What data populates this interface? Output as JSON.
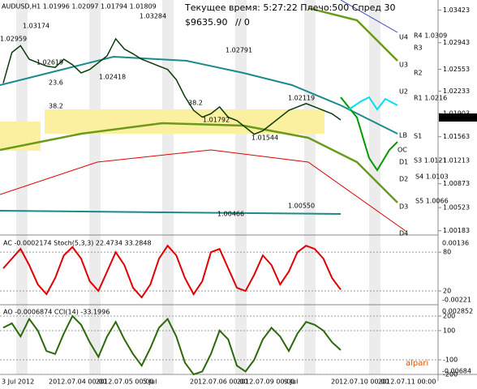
{
  "header": {
    "symbol": "AUDUSD,H1  1.01996 1.02097 1.01794 1.01809",
    "status": "Текущее время: 5:27:22 Плечо:500 Спред 30",
    "balance": "$9635.90",
    "counter": "// 0"
  },
  "chart_data": [
    {
      "type": "line",
      "title": "AUDUSD,H1",
      "color": "#0a3a0a",
      "values": [
        1.0235,
        1.028,
        1.029,
        1.027,
        1.0265,
        1.026,
        1.0258,
        1.027,
        1.0262,
        1.025,
        1.0255,
        1.0265,
        1.0275,
        1.03,
        1.0285,
        1.0278,
        1.027,
        1.0265,
        1.026,
        1.0255,
        1.024,
        1.0215,
        1.0195,
        1.0185,
        1.019,
        1.02,
        1.0185,
        1.018,
        1.017,
        1.016,
        1.0165,
        1.0175,
        1.0185,
        1.0195,
        1.02,
        1.0205,
        1.02,
        1.0195,
        1.019,
        1.01809
      ],
      "ylim": [
        1.0012,
        1.0357
      ],
      "yticks": [
        1.03423,
        1.02943,
        1.02553,
        1.02233,
        1.01903,
        1.01563,
        1.01213,
        1.00873,
        1.00523,
        1.00183
      ],
      "annotations": [
        "1.03284",
        "1.03174",
        "1.02959",
        "1.02791",
        "1.02619",
        "1.02418",
        "1.02119",
        "1.01792",
        "1.01544",
        "1.00550",
        "1.00466",
        "23.6",
        "38.2",
        "38.2",
        "U4",
        "U3",
        "U2",
        "LB",
        "D1",
        "D2",
        "D3",
        "D4",
        "R4 1.0309",
        "R3",
        "R2",
        "R1 1.0216",
        "S1",
        "S3 1.0121",
        "S4 1.0103",
        "S5 1.0066",
        "OC",
        "1.01809"
      ]
    },
    {
      "type": "line",
      "title": "AC -0.0002174  Stoch(5,3,3) 22.4734 33.2848",
      "color": "#e00000",
      "values": [
        55,
        70,
        85,
        60,
        30,
        15,
        40,
        75,
        88,
        70,
        35,
        20,
        50,
        80,
        60,
        25,
        10,
        30,
        70,
        90,
        75,
        40,
        15,
        35,
        80,
        85,
        55,
        25,
        20,
        45,
        75,
        60,
        30,
        50,
        80,
        90,
        85,
        70,
        40,
        22
      ],
      "ylim": [
        0,
        104
      ],
      "yticks": [
        80,
        20
      ],
      "annotations": [
        "0.00136",
        "-0.00221"
      ]
    },
    {
      "type": "line",
      "title": "AO -0.0006874  CCI(14) -33.1996",
      "color": "#2a6a0a",
      "values": [
        120,
        150,
        60,
        180,
        100,
        -40,
        -60,
        80,
        200,
        140,
        20,
        -80,
        60,
        160,
        40,
        -60,
        -140,
        -20,
        120,
        180,
        60,
        -120,
        -200,
        -180,
        -60,
        100,
        40,
        -140,
        -180,
        -100,
        40,
        120,
        60,
        -40,
        80,
        160,
        140,
        100,
        20,
        -33.1996
      ],
      "ylim": [
        -200,
        272
      ],
      "yticks": [
        200,
        100,
        -100,
        -200
      ],
      "annotations": [
        "0.002852",
        "-0.00684"
      ]
    }
  ],
  "time_axis": [
    "3 Jul 2012",
    "2012.07.04 00:00",
    "2012.07.05 00:00",
    "5 Jul",
    "2012.07.06 00:00",
    "2012.07.09 00:00",
    "9 Jul",
    "2012.07.10 00:00",
    "2012.07.11 00:00"
  ],
  "logo": "alpari"
}
